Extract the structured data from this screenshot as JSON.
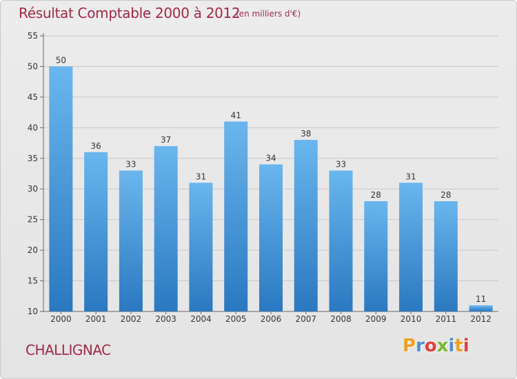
{
  "title": "Résultat Comptable 2000 à 2012",
  "subtitle": "(en milliers d'€)",
  "commune": "CHALLIGNAC",
  "logo": {
    "letters": [
      "P",
      "r",
      "o",
      "x",
      "i",
      "t",
      "i"
    ],
    "colors": [
      "#f0a020",
      "#4a8fd0",
      "#e04040",
      "#7ab830",
      "#4a8fd0",
      "#f0a020",
      "#e04040"
    ]
  },
  "colors": {
    "bar": "#3d8fd6",
    "bar_light": "#6ab6ee",
    "bar_dark": "#2a78c0",
    "title": "#a0284a",
    "grid": "#c8c8c8"
  },
  "chart_data": {
    "type": "bar",
    "categories": [
      "2000",
      "2001",
      "2002",
      "2003",
      "2004",
      "2005",
      "2006",
      "2007",
      "2008",
      "2009",
      "2010",
      "2011",
      "2012"
    ],
    "values": [
      50,
      36,
      33,
      37,
      31,
      41,
      34,
      38,
      33,
      28,
      31,
      28,
      11
    ],
    "title": "Résultat Comptable 2000 à 2012",
    "subtitle": "(en milliers d'€)",
    "xlabel": "",
    "ylabel": "",
    "ylim": [
      10,
      55
    ],
    "yticks": [
      10,
      15,
      20,
      25,
      30,
      35,
      40,
      45,
      50,
      55
    ],
    "grid": true
  }
}
